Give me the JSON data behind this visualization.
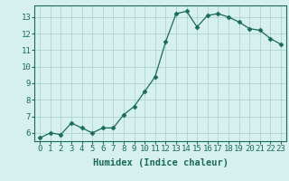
{
  "x": [
    0,
    1,
    2,
    3,
    4,
    5,
    6,
    7,
    8,
    9,
    10,
    11,
    12,
    13,
    14,
    15,
    16,
    17,
    18,
    19,
    20,
    21,
    22,
    23
  ],
  "y": [
    5.7,
    6.0,
    5.9,
    6.6,
    6.3,
    6.0,
    6.3,
    6.3,
    7.1,
    7.6,
    8.5,
    9.4,
    11.5,
    13.2,
    13.35,
    12.4,
    13.1,
    13.2,
    13.0,
    12.7,
    12.3,
    12.2,
    11.7,
    11.35
  ],
  "line_color": "#1a6b5a",
  "marker": "D",
  "marker_size": 2.5,
  "bg_color": "#d6f0ee",
  "grid_color": "#a8ceca",
  "xlabel": "Humidex (Indice chaleur)",
  "xlim": [
    -0.5,
    23.5
  ],
  "ylim": [
    5.5,
    13.7
  ],
  "yticks": [
    6,
    7,
    8,
    9,
    10,
    11,
    12,
    13
  ],
  "xticks": [
    0,
    1,
    2,
    3,
    4,
    5,
    6,
    7,
    8,
    9,
    10,
    11,
    12,
    13,
    14,
    15,
    16,
    17,
    18,
    19,
    20,
    21,
    22,
    23
  ],
  "xlabel_fontsize": 7.5,
  "tick_fontsize": 6.5
}
